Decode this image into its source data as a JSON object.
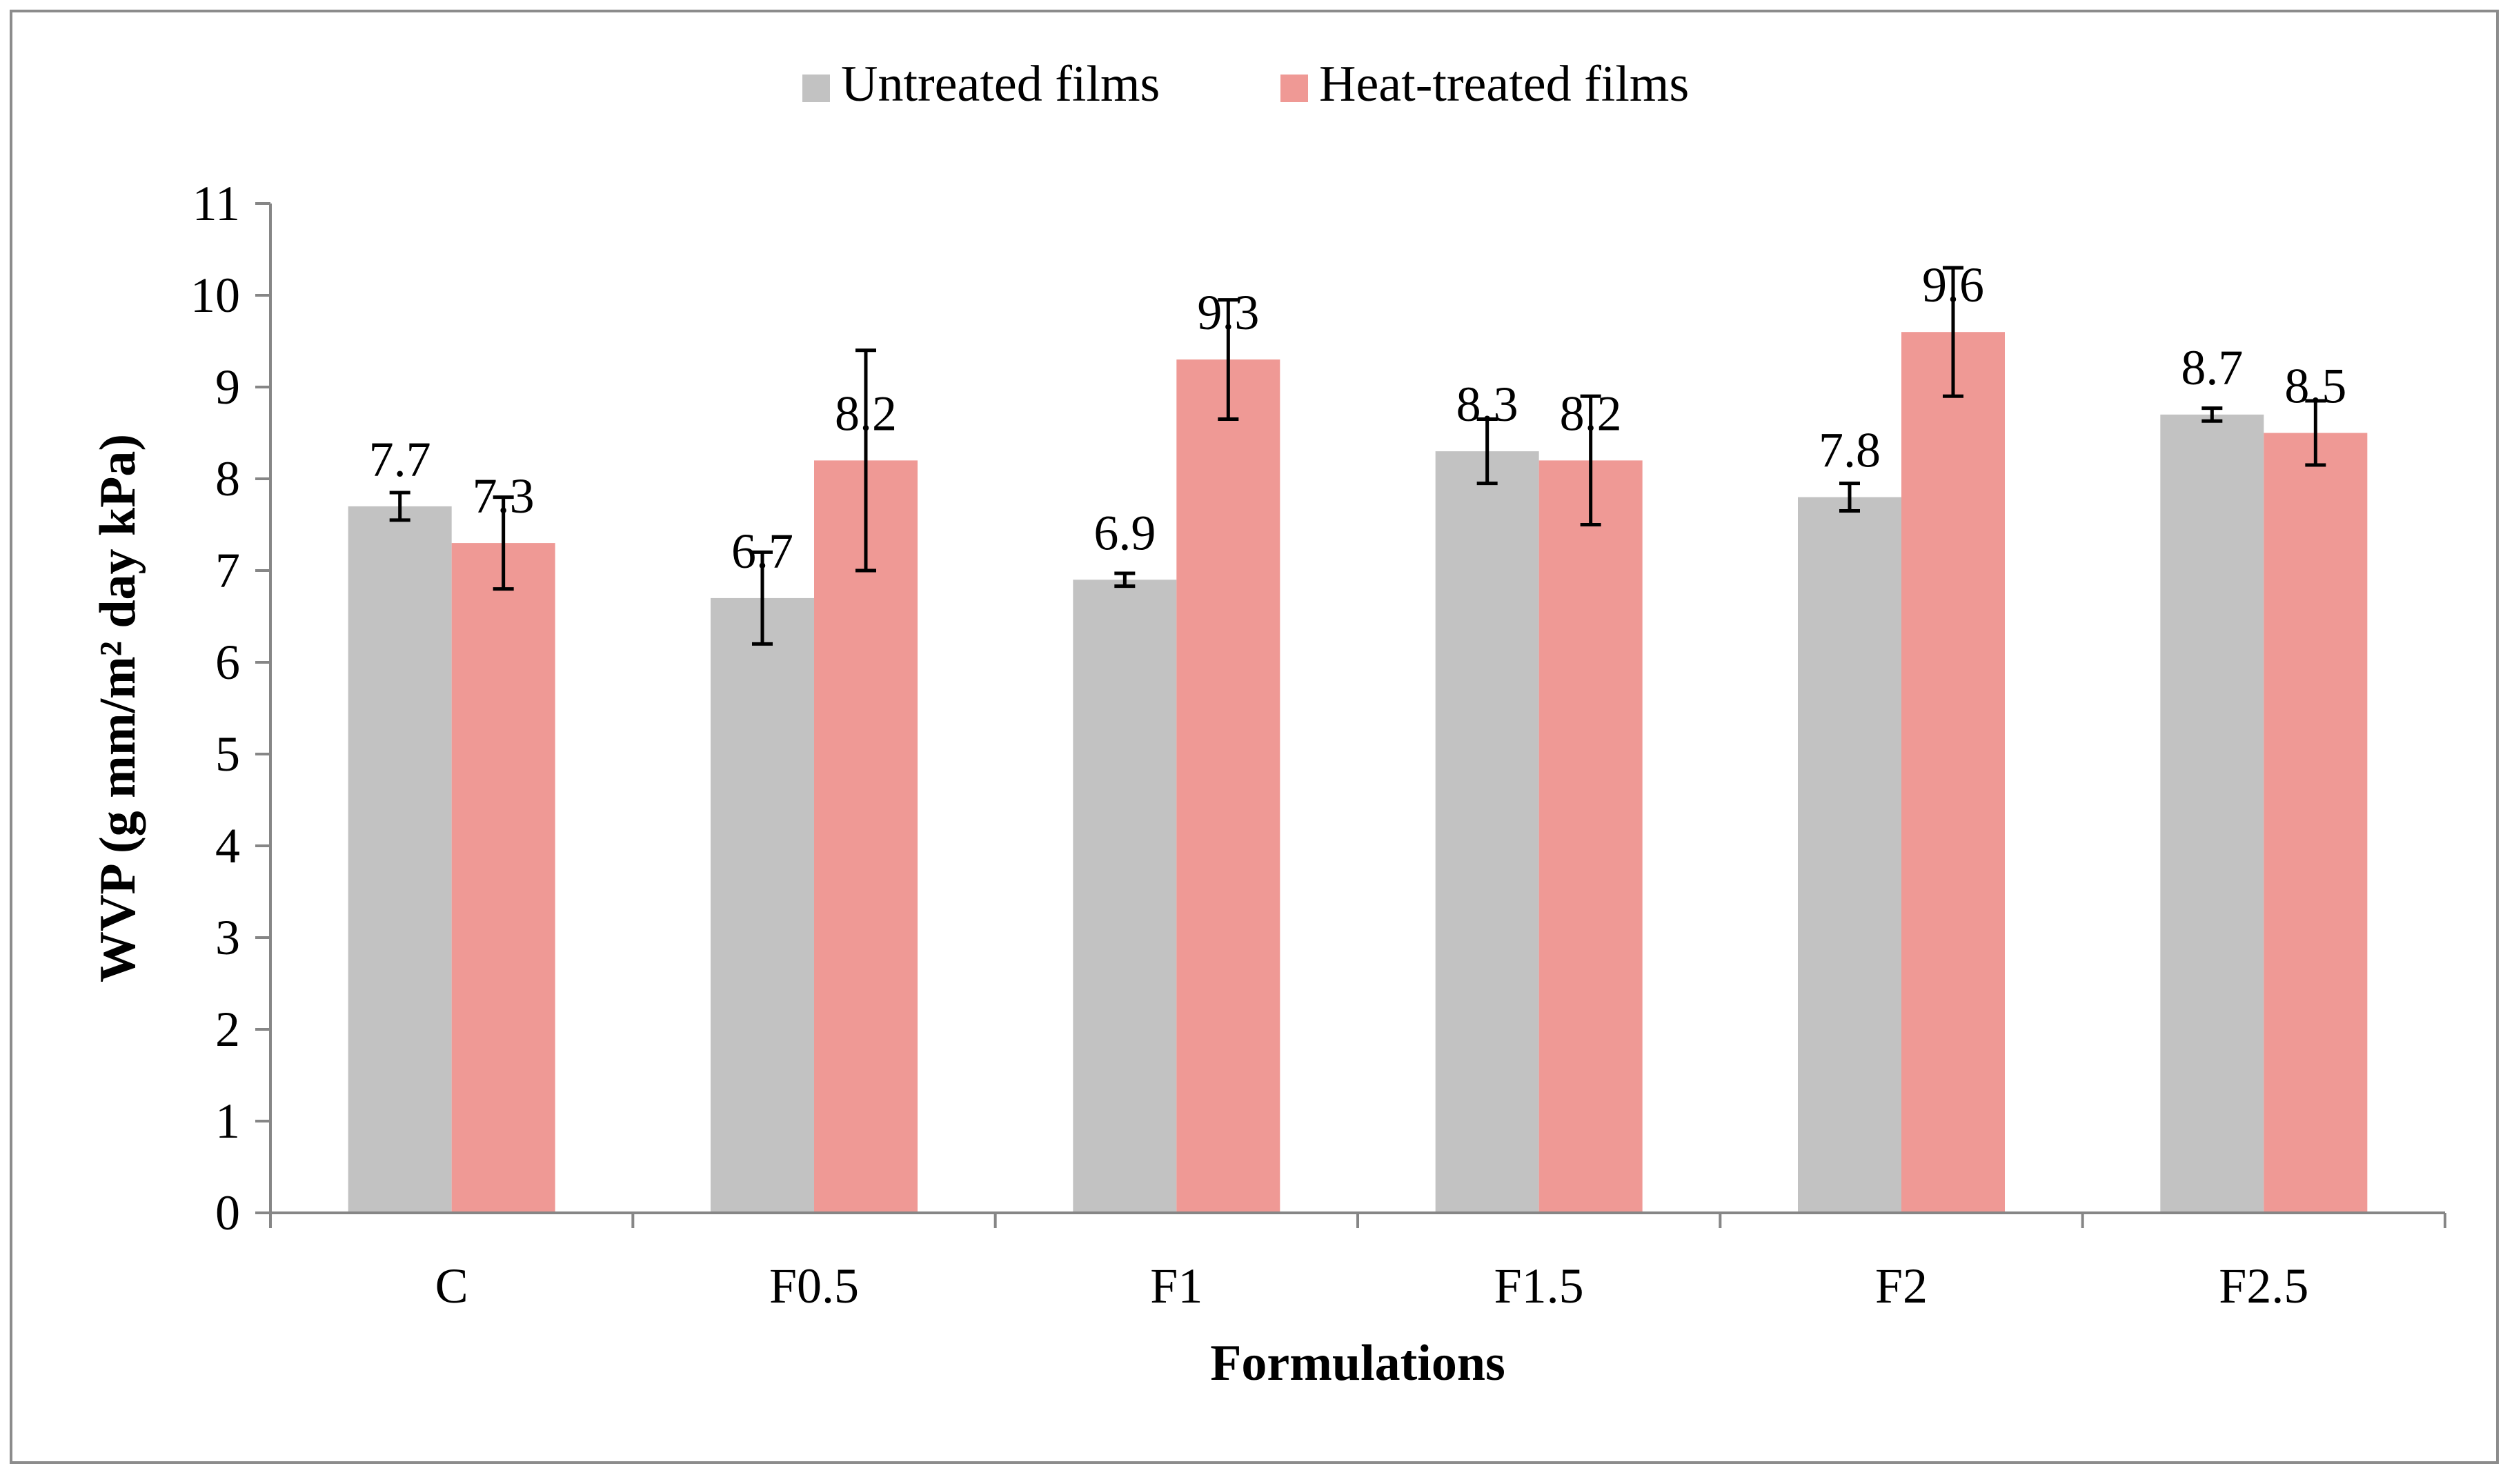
{
  "chart_data": {
    "type": "bar",
    "title": "",
    "xlabel": "Formulations",
    "ylabel": "WVP (g mm/m² day kPa)",
    "ylim": [
      0,
      11
    ],
    "yticks": [
      "0",
      "1",
      "2",
      "3",
      "4",
      "5",
      "6",
      "7",
      "8",
      "9",
      "10",
      "11"
    ],
    "categories": [
      "C",
      "F0.5",
      "F1",
      "F1.5",
      "F2",
      "F2.5"
    ],
    "legend_position": "top",
    "grid": false,
    "series": [
      {
        "name": "Untreated films",
        "color": "#c2c2c2",
        "values": [
          7.7,
          6.7,
          6.9,
          8.3,
          7.8,
          8.7
        ],
        "labels": [
          "7.7",
          "6.7",
          "6.9",
          "8.3",
          "7.8",
          "8.7"
        ],
        "errors": [
          0.15,
          0.5,
          0.07,
          0.35,
          0.15,
          0.07
        ]
      },
      {
        "name": "Heat-treated films",
        "color": "#ef9995",
        "values": [
          7.3,
          8.2,
          9.3,
          8.2,
          9.6,
          8.5
        ],
        "labels": [
          "7.3",
          "8.2",
          "9.3",
          "8.2",
          "9.6",
          "8.5"
        ],
        "errors": [
          0.5,
          1.2,
          0.65,
          0.7,
          0.7,
          0.35
        ]
      }
    ]
  }
}
